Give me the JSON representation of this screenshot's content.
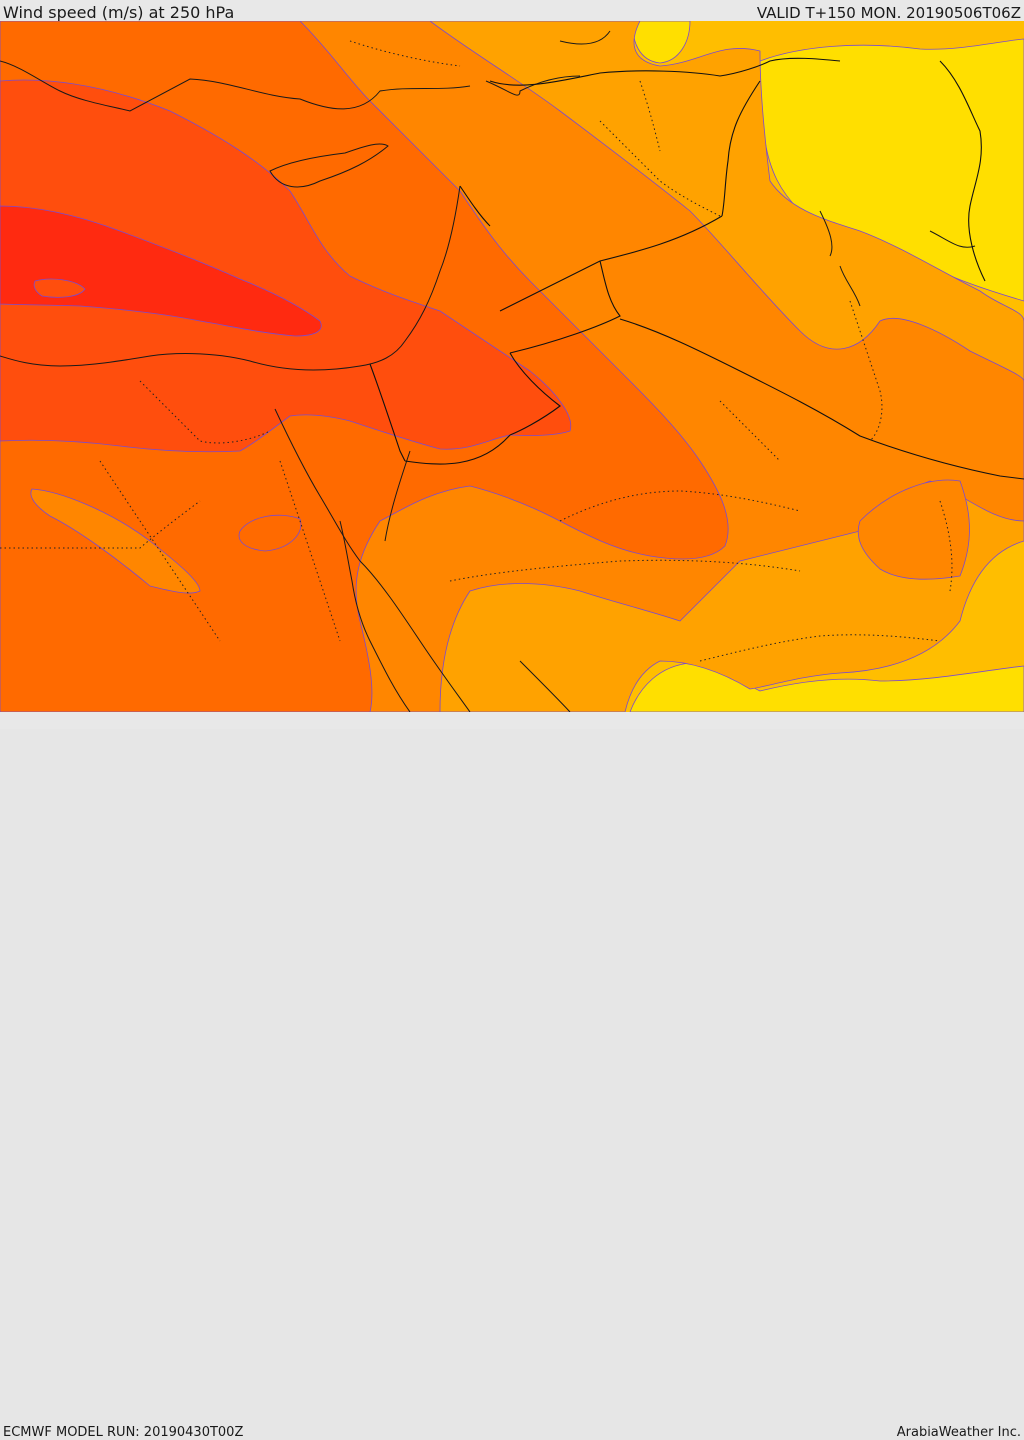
{
  "header": {
    "title": "Wind speed (m/s) at 250 hPa",
    "valid": "VALID T+150 MON. 20190506T06Z"
  },
  "footer": {
    "model_run": "ECMWF MODEL RUN: 20190430T00Z",
    "credit": "ArabiaWeather Inc."
  },
  "palette": {
    "yellow": "#ffdf00",
    "light_orange": "#ffbe00",
    "amber": "#ffa200",
    "orange": "#ff8600",
    "dark_orange": "#ff6a00",
    "red_orange": "#ff4e0d",
    "red": "#ff2a10",
    "contour": "#7a4bd0"
  }
}
